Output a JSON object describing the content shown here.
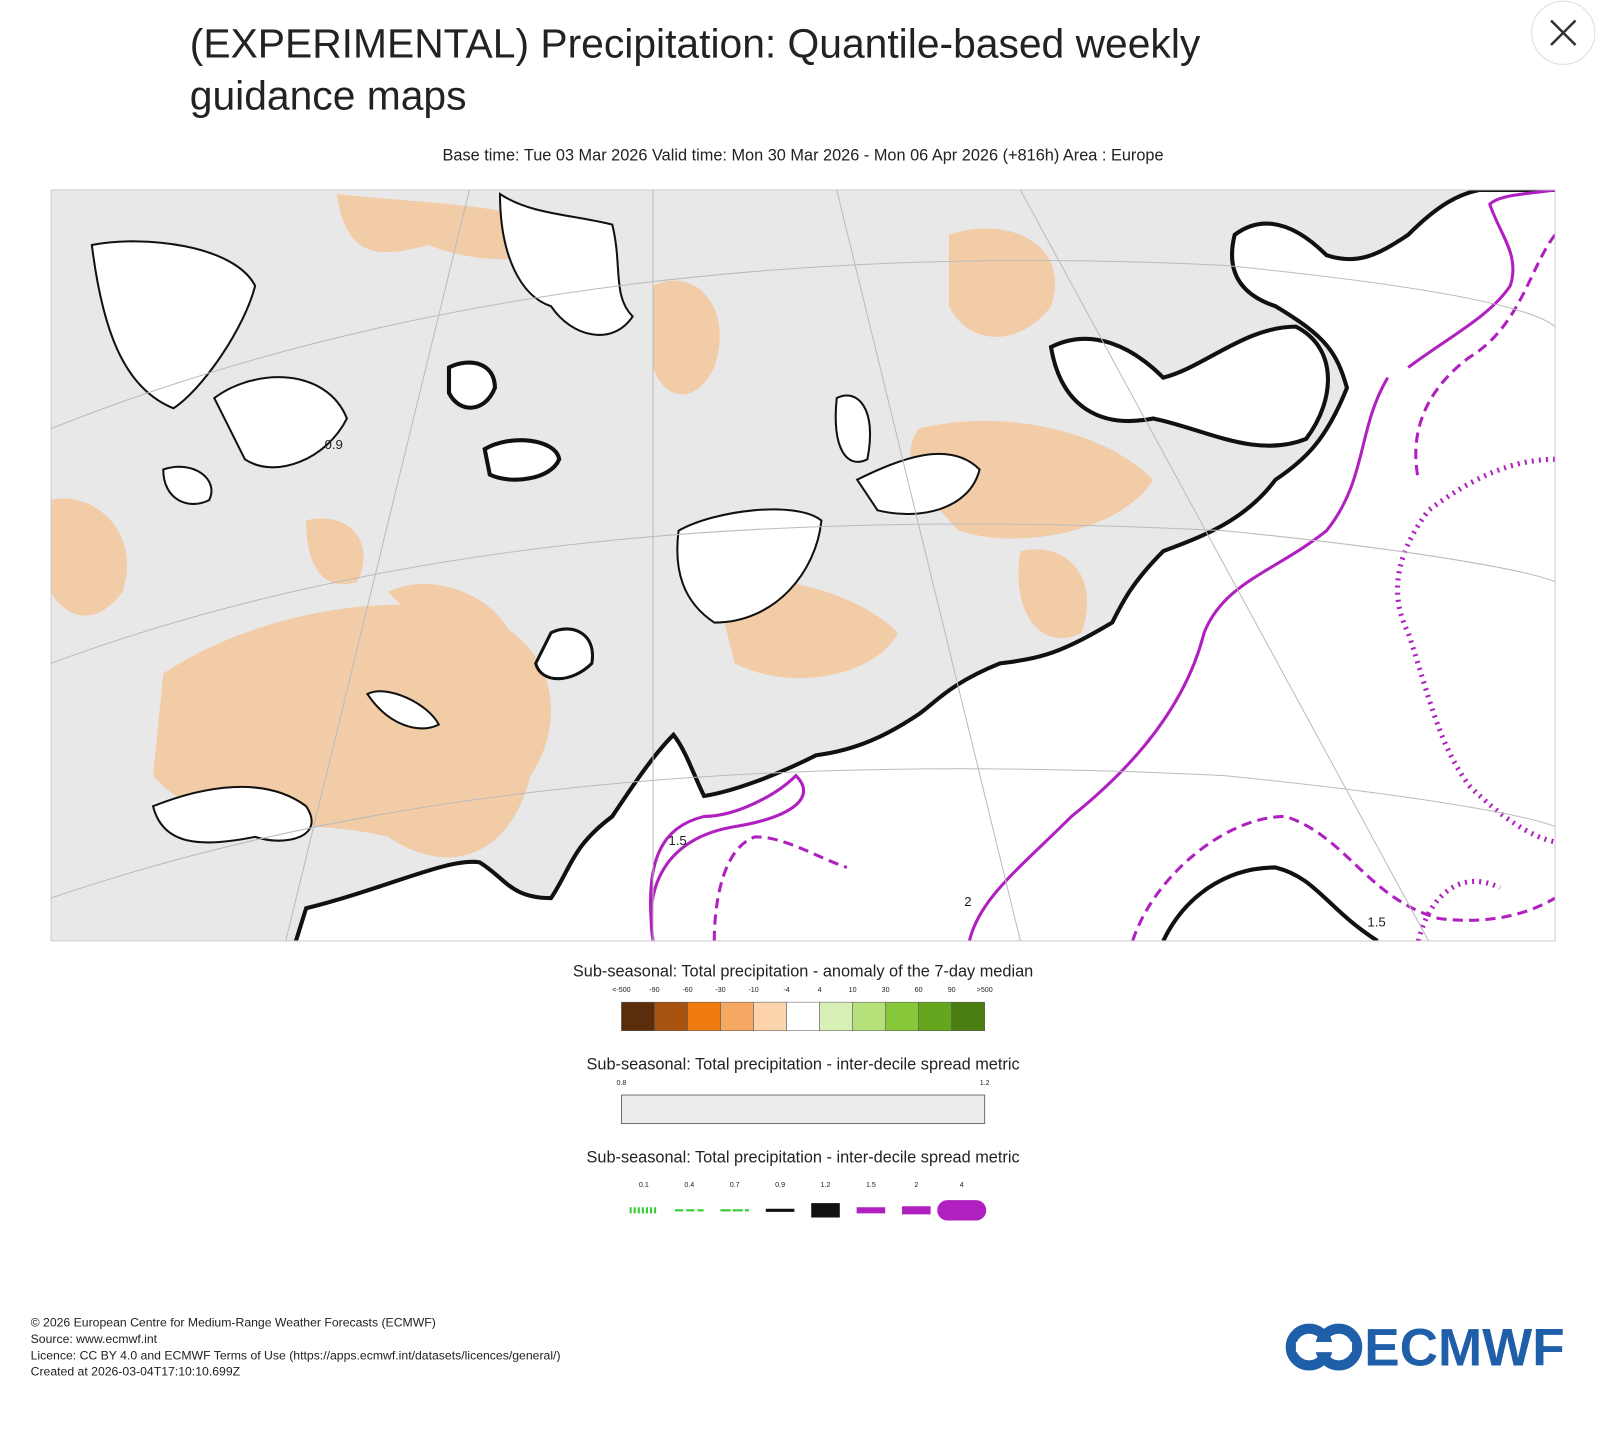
{
  "header": {
    "title_line1": "(EXPERIMENTAL) Precipitation: Quantile-based weekly",
    "title_line2": "guidance maps",
    "subtitle": "Base time: Tue 03 Mar 2026 Valid time: Mon 30 Mar 2026 - Mon 06 Apr 2026 (+816h) Area : Europe"
  },
  "map": {
    "contour_labels": [
      "1.5",
      "2",
      "1.5",
      "0.9"
    ]
  },
  "legends": [
    {
      "title": "Sub-seasonal: Total precipitation - anomaly of the 7-day median",
      "labels": [
        "<-500",
        "-90",
        "-60",
        "-30",
        "-10",
        "-4",
        "4",
        "10",
        "30",
        "60",
        "90",
        ">500"
      ],
      "colors": [
        "#5a2e0c",
        "#a8520f",
        "#f07a10",
        "#f5a862",
        "#fbd3ad",
        "#ffffff",
        "#d9efb8",
        "#b6e07a",
        "#86c83a",
        "#64a61e",
        "#4a7d12"
      ]
    },
    {
      "title": "Sub-seasonal: Total precipitation - inter-decile spread metric",
      "labels": [
        "0.8",
        "1.2"
      ]
    },
    {
      "title": "Sub-seasonal: Total precipitation - inter-decile spread metric",
      "labels": [
        "0.1",
        "0.4",
        "0.7",
        "0.9",
        "1.2",
        "1.5",
        "2",
        "4"
      ]
    }
  ],
  "footer": {
    "lines": [
      "© 2026 European Centre for Medium-Range Weather Forecasts (ECMWF)",
      "Source: www.ecmwf.int",
      "Licence: CC BY 4.0 and ECMWF Terms of Use (https://apps.ecmwf.int/datasets/licences/general/)",
      "Created at 2026-03-04T17:10:10.699Z"
    ],
    "logo": "ECMWF"
  }
}
